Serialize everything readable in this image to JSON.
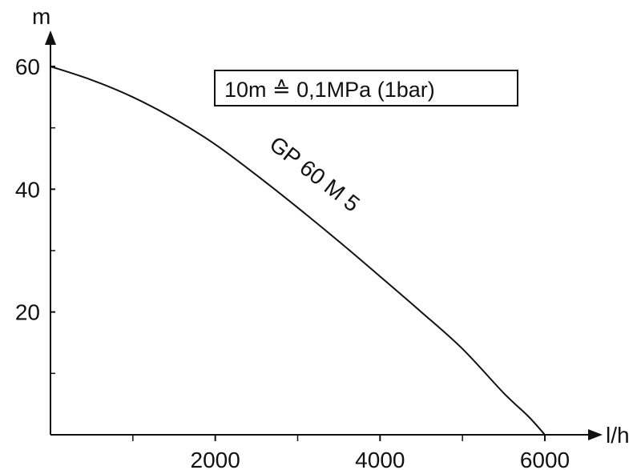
{
  "chart_data": {
    "type": "line",
    "title": "",
    "xlabel": "l/h",
    "ylabel": "m",
    "xlim": [
      0,
      6000
    ],
    "ylim": [
      0,
      60
    ],
    "x_ticks": [
      2000,
      4000,
      6000
    ],
    "x_minor_ticks": [
      1000,
      3000,
      5000
    ],
    "y_ticks": [
      20,
      40,
      60
    ],
    "y_minor_ticks": [
      10,
      30,
      50
    ],
    "grid": false,
    "annotation": "10m ≙ 0,1MPa (1bar)",
    "series": [
      {
        "name": "GP 60 M 5",
        "x": [
          0,
          500,
          1000,
          1500,
          2000,
          2500,
          3000,
          3500,
          4000,
          4500,
          5000,
          5500,
          5800,
          6000
        ],
        "y": [
          60,
          57.8,
          55,
          51.5,
          47.3,
          42.3,
          37,
          31.5,
          25.8,
          20,
          14,
          6.8,
          3,
          0
        ]
      }
    ]
  }
}
